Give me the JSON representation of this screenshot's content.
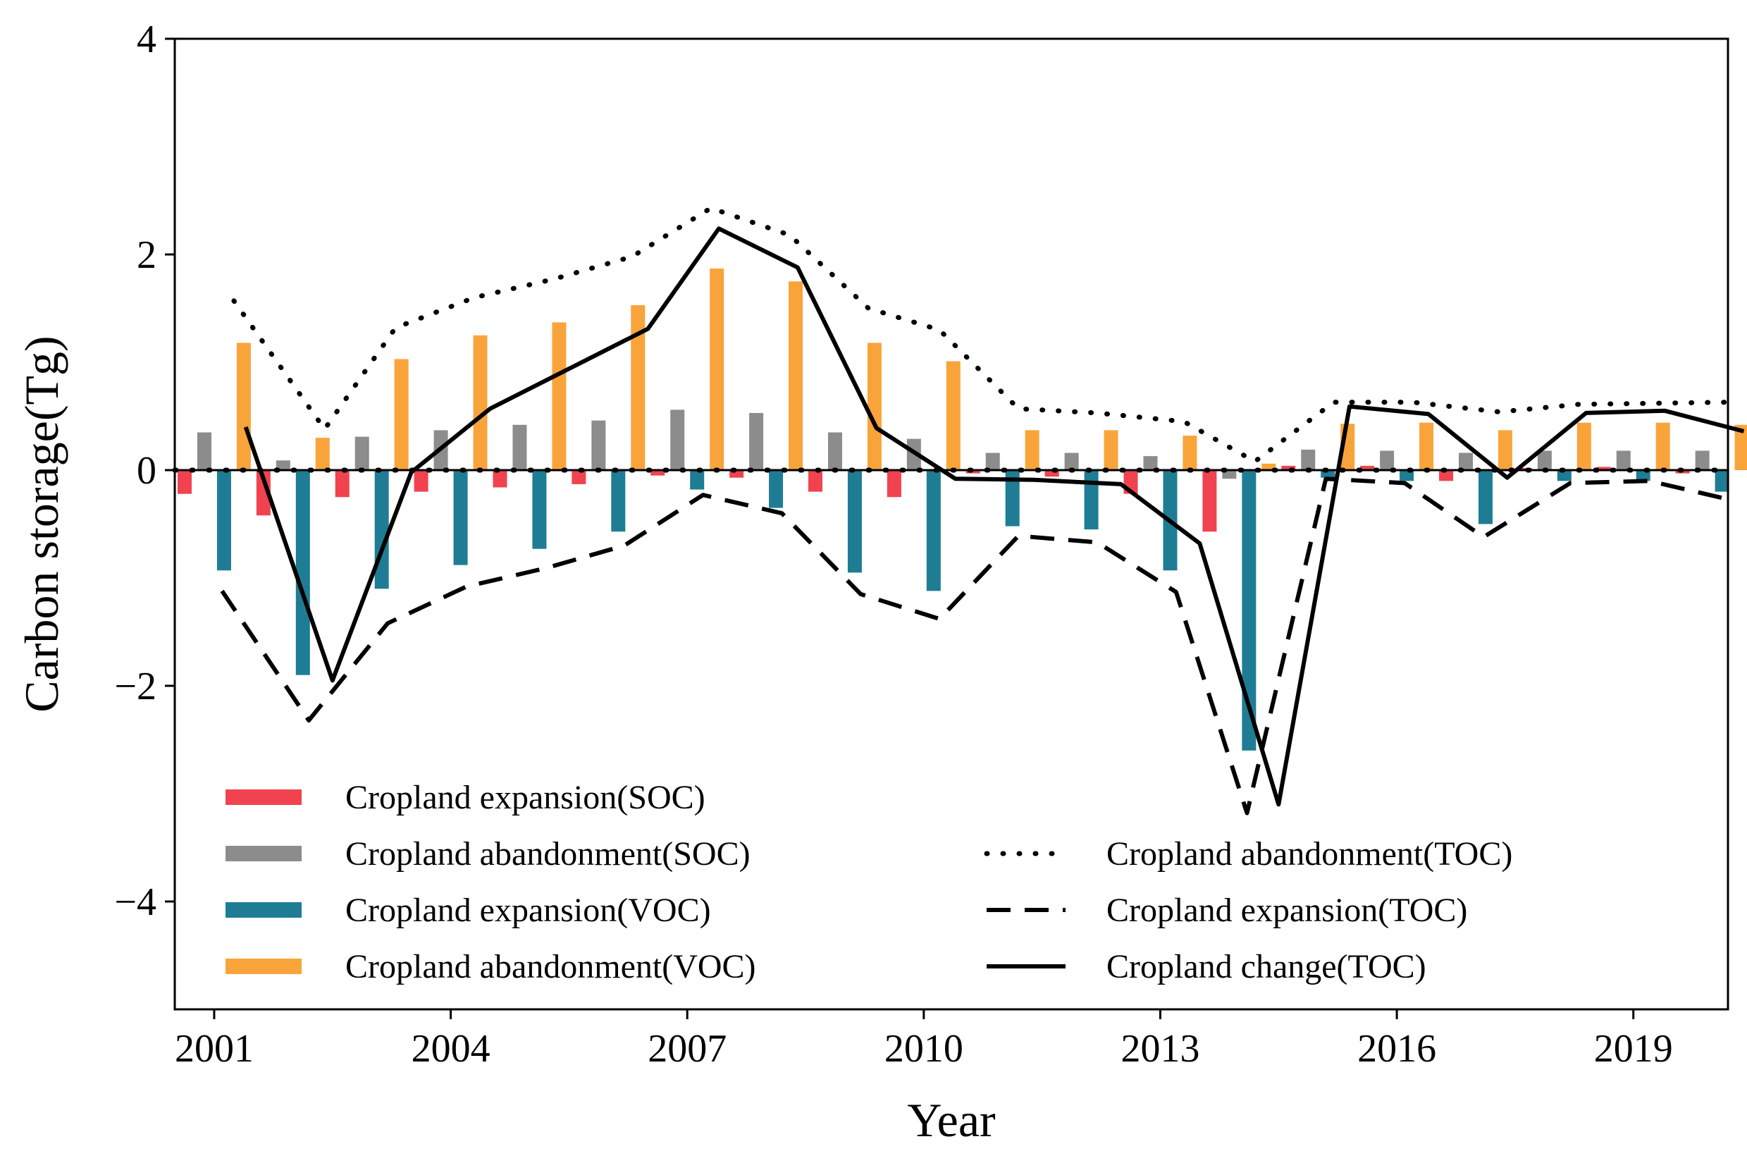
{
  "chart_data": {
    "type": "bar+line",
    "xlabel": "Year",
    "ylabel": "Carbon storage(Tg)",
    "ylim": [
      -5,
      4
    ],
    "xlim": [
      2000.5,
      2020.2
    ],
    "y_ticks": [
      {
        "value": 4,
        "label": "4"
      },
      {
        "value": 2,
        "label": "2"
      },
      {
        "value": 0,
        "label": "0"
      },
      {
        "value": -2,
        "label": "−2"
      },
      {
        "value": -4,
        "label": "−4"
      }
    ],
    "x_ticks": [
      {
        "value": 2001,
        "label": "2001"
      },
      {
        "value": 2004,
        "label": "2004"
      },
      {
        "value": 2007,
        "label": "2007"
      },
      {
        "value": 2010,
        "label": "2010"
      },
      {
        "value": 2013,
        "label": "2013"
      },
      {
        "value": 2016,
        "label": "2016"
      },
      {
        "value": 2019,
        "label": "2019"
      }
    ],
    "years": [
      2001,
      2002,
      2003,
      2004,
      2005,
      2006,
      2007,
      2008,
      2009,
      2010,
      2011,
      2012,
      2013,
      2014,
      2015,
      2016,
      2017,
      2018,
      2019,
      2020
    ],
    "bar_series": [
      {
        "name": "Cropland expansion(SOC)",
        "color": "#f0434f",
        "offset": -0.375,
        "values": [
          -0.22,
          -0.42,
          -0.25,
          -0.2,
          -0.16,
          -0.13,
          -0.05,
          -0.07,
          -0.2,
          -0.25,
          -0.03,
          -0.06,
          -0.22,
          -0.57,
          0.04,
          0.04,
          -0.1,
          0.02,
          0.03,
          -0.03
        ]
      },
      {
        "name": "Cropland abandonment(SOC)",
        "color": "#8c8c8c",
        "offset": -0.125,
        "values": [
          0.35,
          0.09,
          0.31,
          0.37,
          0.42,
          0.46,
          0.56,
          0.53,
          0.35,
          0.29,
          0.16,
          0.16,
          0.13,
          -0.08,
          0.19,
          0.18,
          0.16,
          0.18,
          0.18,
          0.18
        ]
      },
      {
        "name": "Cropland expansion(VOC)",
        "color": "#1e7d94",
        "offset": 0.125,
        "values": [
          -0.93,
          -1.9,
          -1.1,
          -0.88,
          -0.73,
          -0.57,
          -0.18,
          -0.35,
          -0.95,
          -1.12,
          -0.52,
          -0.55,
          -0.93,
          -2.6,
          -0.07,
          -0.1,
          -0.5,
          -0.1,
          -0.1,
          -0.2
        ]
      },
      {
        "name": "Cropland abandonment(VOC)",
        "color": "#f9a43b",
        "offset": 0.375,
        "values": [
          1.18,
          0.3,
          1.03,
          1.25,
          1.37,
          1.53,
          1.87,
          1.75,
          1.18,
          1.01,
          0.37,
          0.37,
          0.32,
          0.06,
          0.43,
          0.44,
          0.37,
          0.44,
          0.44,
          0.42
        ]
      }
    ],
    "line_series": [
      {
        "name": "Cropland abandonment(TOC)",
        "style": "dotted",
        "points": [
          [
            2001.25,
            1.57
          ],
          [
            2002.4,
            0.38
          ],
          [
            2003.3,
            1.32
          ],
          [
            2004.3,
            1.6
          ],
          [
            2005.3,
            1.77
          ],
          [
            2006.3,
            1.98
          ],
          [
            2007.3,
            2.43
          ],
          [
            2008.3,
            2.18
          ],
          [
            2009.3,
            1.5
          ],
          [
            2010.2,
            1.3
          ],
          [
            2011.2,
            0.57
          ],
          [
            2012.2,
            0.53
          ],
          [
            2013.3,
            0.45
          ],
          [
            2014.2,
            0.08
          ],
          [
            2015.2,
            0.63
          ],
          [
            2016.2,
            0.63
          ],
          [
            2017.3,
            0.54
          ],
          [
            2018.3,
            0.61
          ],
          [
            2019.3,
            0.62
          ],
          [
            2020.2,
            0.63
          ]
        ]
      },
      {
        "name": "Cropland expansion(TOC)",
        "style": "dashed",
        "points": [
          [
            2001.1,
            -1.12
          ],
          [
            2002.2,
            -2.32
          ],
          [
            2003.2,
            -1.42
          ],
          [
            2004.2,
            -1.08
          ],
          [
            2005.2,
            -0.91
          ],
          [
            2006.2,
            -0.7
          ],
          [
            2007.2,
            -0.23
          ],
          [
            2008.2,
            -0.4
          ],
          [
            2009.2,
            -1.15
          ],
          [
            2010.2,
            -1.38
          ],
          [
            2011.2,
            -0.61
          ],
          [
            2012.2,
            -0.67
          ],
          [
            2013.2,
            -1.13
          ],
          [
            2014.1,
            -3.18
          ],
          [
            2015.1,
            -0.08
          ],
          [
            2016.1,
            -0.12
          ],
          [
            2017.1,
            -0.62
          ],
          [
            2018.2,
            -0.12
          ],
          [
            2019.2,
            -0.1
          ],
          [
            2020.2,
            -0.27
          ]
        ]
      },
      {
        "name": "Cropland change(TOC)",
        "style": "solid",
        "points": [
          [
            2001.4,
            0.4
          ],
          [
            2002.5,
            -1.95
          ],
          [
            2003.5,
            -0.02
          ],
          [
            2004.5,
            0.57
          ],
          [
            2005.5,
            0.94
          ],
          [
            2006.5,
            1.31
          ],
          [
            2007.4,
            2.24
          ],
          [
            2008.4,
            1.88
          ],
          [
            2009.4,
            0.39
          ],
          [
            2010.4,
            -0.08
          ],
          [
            2011.4,
            -0.09
          ],
          [
            2012.5,
            -0.13
          ],
          [
            2013.5,
            -0.68
          ],
          [
            2014.5,
            -3.1
          ],
          [
            2015.4,
            0.59
          ],
          [
            2016.4,
            0.52
          ],
          [
            2017.4,
            -0.07
          ],
          [
            2018.4,
            0.53
          ],
          [
            2019.4,
            0.55
          ],
          [
            2020.4,
            0.36
          ]
        ]
      }
    ],
    "zero_line_style": "dotted-and-solid",
    "legend_left": [
      "Cropland expansion(SOC)",
      "Cropland abandonment(SOC)",
      "Cropland expansion(VOC)",
      "Cropland abandonment(VOC)"
    ],
    "legend_right": [
      "Cropland abandonment(TOC)",
      "Cropland expansion(TOC)",
      "Cropland change(TOC)"
    ]
  }
}
